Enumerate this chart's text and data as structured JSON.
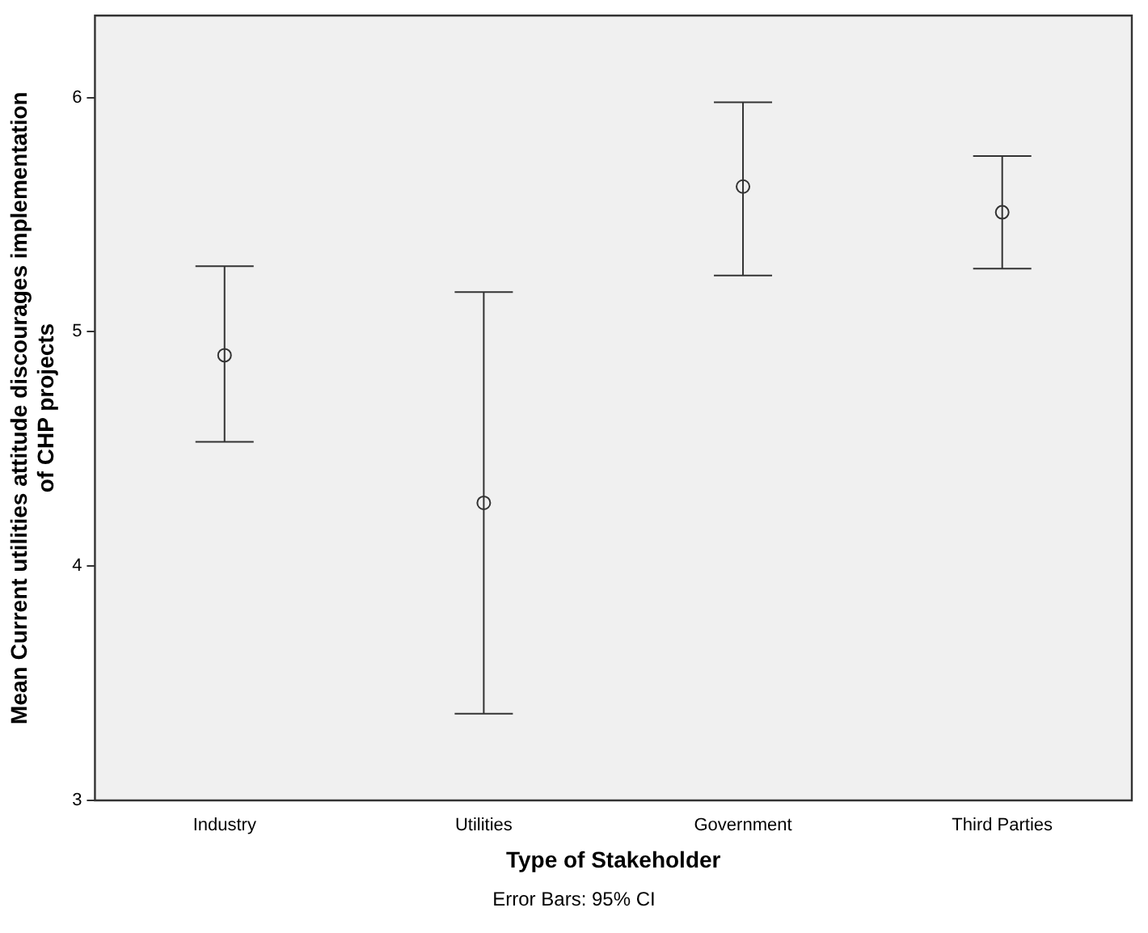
{
  "chart_data": {
    "type": "scatter",
    "xlabel": "Type of Stakeholder",
    "ylabel": "Mean Current utilities attitude discourages implementation of CHP projects",
    "annotations": [
      "Error Bars: 95% CI"
    ],
    "categories": [
      "Industry",
      "Utilities",
      "Government",
      "Third Parties"
    ],
    "values": [
      4.9,
      4.27,
      5.62,
      5.51
    ],
    "errors": [
      [
        4.53,
        5.28
      ],
      [
        3.37,
        5.17
      ],
      [
        5.24,
        5.98
      ],
      [
        5.27,
        5.75
      ]
    ],
    "color": "#333333",
    "marker": "circle",
    "ylim": [
      3,
      6.35
    ],
    "yticks": [
      3,
      4,
      5,
      6
    ],
    "grid": false,
    "legend": false
  }
}
